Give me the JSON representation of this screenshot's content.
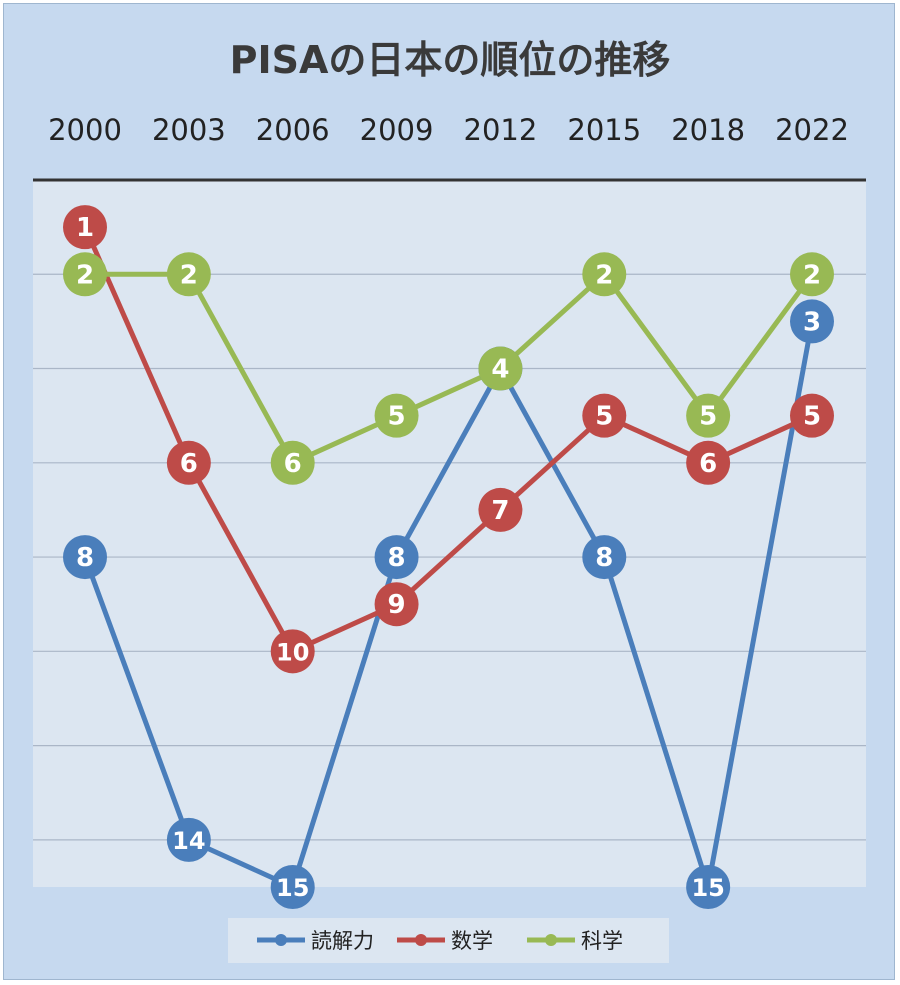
{
  "chart_data": {
    "type": "line",
    "title": "PISAの日本の順位の推移",
    "categories": [
      "2000",
      "2003",
      "2006",
      "2009",
      "2012",
      "2015",
      "2018",
      "2022"
    ],
    "y_axis": {
      "reversed": true,
      "min": 1,
      "max": 15,
      "gridlines": true,
      "tick_labels_shown": false
    },
    "series": [
      {
        "name": "読解力",
        "color": "#4a7ebb",
        "values": [
          8,
          14,
          15,
          8,
          4,
          8,
          15,
          3
        ]
      },
      {
        "name": "数学",
        "color": "#be4b48",
        "values": [
          1,
          6,
          10,
          9,
          7,
          5,
          6,
          5
        ]
      },
      {
        "name": "科学",
        "color": "#98b954",
        "values": [
          2,
          2,
          6,
          5,
          4,
          2,
          5,
          2
        ]
      }
    ],
    "legend": {
      "position": "bottom"
    }
  }
}
